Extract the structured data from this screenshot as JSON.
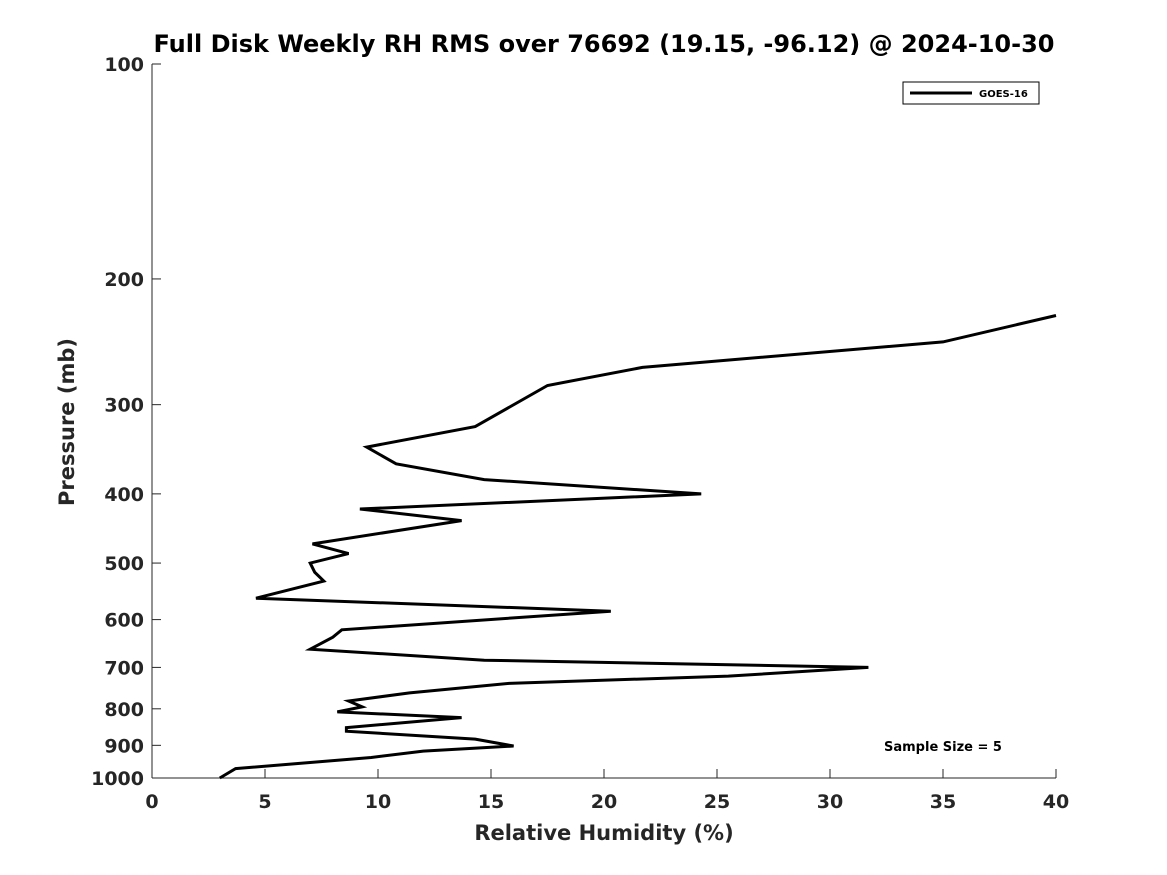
{
  "chart_data": {
    "type": "line",
    "title": "Full Disk Weekly RH RMS over 76692 (19.15, -96.12) @ 2024-10-30",
    "xlabel": "Relative Humidity (%)",
    "ylabel": "Pressure (mb)",
    "xlim": [
      0,
      40
    ],
    "ylim": [
      100,
      1000
    ],
    "y_scale": "log",
    "y_reversed": true,
    "x_ticks": [
      0,
      5,
      10,
      15,
      20,
      25,
      30,
      35,
      40
    ],
    "y_ticks": [
      100,
      200,
      300,
      400,
      500,
      600,
      700,
      800,
      900,
      1000
    ],
    "grid": false,
    "legend_position": "top-right",
    "series": [
      {
        "name": "GOES-16",
        "color": "#000000",
        "points": [
          {
            "x": 40.0,
            "y": 225
          },
          {
            "x": 35.0,
            "y": 245
          },
          {
            "x": 21.7,
            "y": 266
          },
          {
            "x": 17.5,
            "y": 282
          },
          {
            "x": 14.3,
            "y": 322
          },
          {
            "x": 9.5,
            "y": 344
          },
          {
            "x": 10.8,
            "y": 363
          },
          {
            "x": 14.7,
            "y": 382
          },
          {
            "x": 24.3,
            "y": 400
          },
          {
            "x": 9.2,
            "y": 420
          },
          {
            "x": 13.7,
            "y": 436
          },
          {
            "x": 7.1,
            "y": 470
          },
          {
            "x": 8.7,
            "y": 485
          },
          {
            "x": 7.0,
            "y": 500
          },
          {
            "x": 7.2,
            "y": 515
          },
          {
            "x": 7.6,
            "y": 530
          },
          {
            "x": 4.6,
            "y": 560
          },
          {
            "x": 20.3,
            "y": 584
          },
          {
            "x": 8.4,
            "y": 620
          },
          {
            "x": 8.0,
            "y": 635
          },
          {
            "x": 7.0,
            "y": 660
          },
          {
            "x": 14.7,
            "y": 684
          },
          {
            "x": 31.7,
            "y": 700
          },
          {
            "x": 25.5,
            "y": 720
          },
          {
            "x": 15.8,
            "y": 737
          },
          {
            "x": 11.4,
            "y": 760
          },
          {
            "x": 8.7,
            "y": 780
          },
          {
            "x": 9.3,
            "y": 795
          },
          {
            "x": 8.2,
            "y": 808
          },
          {
            "x": 13.7,
            "y": 823
          },
          {
            "x": 8.6,
            "y": 850
          },
          {
            "x": 8.6,
            "y": 860
          },
          {
            "x": 14.3,
            "y": 882
          },
          {
            "x": 16.0,
            "y": 902
          },
          {
            "x": 12.0,
            "y": 917
          },
          {
            "x": 9.7,
            "y": 936
          },
          {
            "x": 3.7,
            "y": 970
          },
          {
            "x": 3.0,
            "y": 1000
          }
        ]
      }
    ],
    "legend_entries": [
      "GOES-16"
    ],
    "annotation": "Sample Size = 5"
  }
}
